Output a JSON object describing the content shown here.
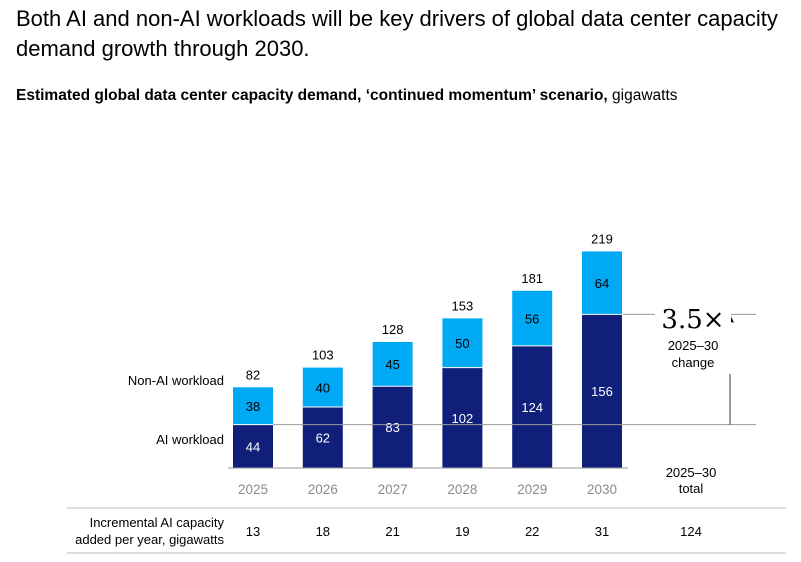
{
  "header": {
    "title": "Both AI and non-AI workloads will be key drivers of global data center capacity demand growth through 2030.",
    "subtitle": "Estimated global data center capacity demand, ‘continued momentum’ scenario,",
    "subtitle_unit": "gigawatts"
  },
  "chart_data": {
    "type": "bar",
    "stacked": true,
    "categories": [
      "2025",
      "2026",
      "2027",
      "2028",
      "2029",
      "2030"
    ],
    "series": [
      {
        "name": "AI workload",
        "values": [
          44,
          62,
          83,
          102,
          124,
          156
        ],
        "color": "#0f1f7a"
      },
      {
        "name": "Non-AI workload",
        "values": [
          38,
          40,
          45,
          50,
          56,
          64
        ],
        "color": "#00a9f4"
      }
    ],
    "totals": [
      82,
      103,
      128,
      153,
      181,
      219
    ],
    "ylim": [
      0,
      219
    ],
    "grid": false,
    "legend": "inline-left",
    "annotation": {
      "multiplier": "3.5×",
      "label_line1": "2025–30",
      "label_line2": "change"
    },
    "total_column": {
      "label_line1": "2025–30",
      "label_line2": "total"
    },
    "incremental_row": {
      "label_line1": "Incremental AI capacity",
      "label_line2": "added per year, gigawatts",
      "values": [
        "13",
        "18",
        "21",
        "19",
        "22",
        "31"
      ],
      "total": "124"
    }
  }
}
